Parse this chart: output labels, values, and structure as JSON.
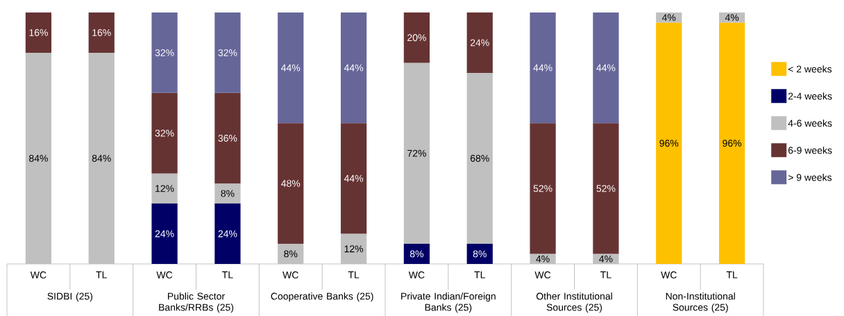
{
  "chart_data": {
    "type": "bar",
    "stacked": true,
    "legend": "right",
    "tick_labels": "x",
    "categories": [
      "WC",
      "TL",
      "WC",
      "TL",
      "WC",
      "TL",
      "WC",
      "TL",
      "WC",
      "TL",
      "WC",
      "TL"
    ],
    "annotations": [
      "SIDBI (25)",
      "Public Sector Banks/RRBs (25)",
      "Cooperative Banks (25)",
      "Private Indian/Foreign Banks (25)",
      "Other Institutional Sources (25)",
      "Non-Institutional Sources (25)"
    ],
    "series": [
      {
        "name": "< 2 weeks",
        "color": "#ffc000",
        "values": [
          null,
          null,
          null,
          null,
          null,
          null,
          null,
          null,
          null,
          null,
          96,
          96
        ],
        "value_labels": [
          null,
          null,
          null,
          null,
          null,
          null,
          null,
          null,
          null,
          null,
          "96%",
          "96%"
        ]
      },
      {
        "name": "2-4 weeks",
        "color": "#000066",
        "values": [
          null,
          null,
          24,
          24,
          null,
          null,
          8,
          8,
          null,
          null,
          null,
          null
        ],
        "value_labels": [
          null,
          null,
          "24%",
          "24%",
          null,
          null,
          "8%",
          "8%",
          null,
          null,
          null,
          null
        ]
      },
      {
        "name": "4-6 weeks",
        "color": "#c0c0c0",
        "values": [
          84,
          84,
          12,
          8,
          8,
          12,
          72,
          68,
          4,
          4,
          4,
          4
        ],
        "value_labels": [
          "84%",
          "84%",
          "12%",
          "8%",
          "8%",
          "12%",
          "72%",
          "68%",
          "4%",
          "4%",
          "4%",
          "4%"
        ]
      },
      {
        "name": "6-9 weeks",
        "color": "#663333",
        "values": [
          16,
          16,
          32,
          36,
          48,
          44,
          20,
          24,
          52,
          52,
          null,
          null
        ],
        "value_labels": [
          "16%",
          "16%",
          "32%",
          "36%",
          "48%",
          "44%",
          "20%",
          "24%",
          "52%",
          "52%",
          null,
          null
        ]
      },
      {
        "name": "> 9 weeks",
        "color": "#666699",
        "values": [
          null,
          null,
          32,
          32,
          44,
          44,
          null,
          null,
          44,
          44,
          null,
          null
        ],
        "value_labels": [
          null,
          null,
          "32%",
          "32%",
          "44%",
          "44%",
          null,
          null,
          "44%",
          "44%",
          null,
          null
        ]
      }
    ]
  }
}
